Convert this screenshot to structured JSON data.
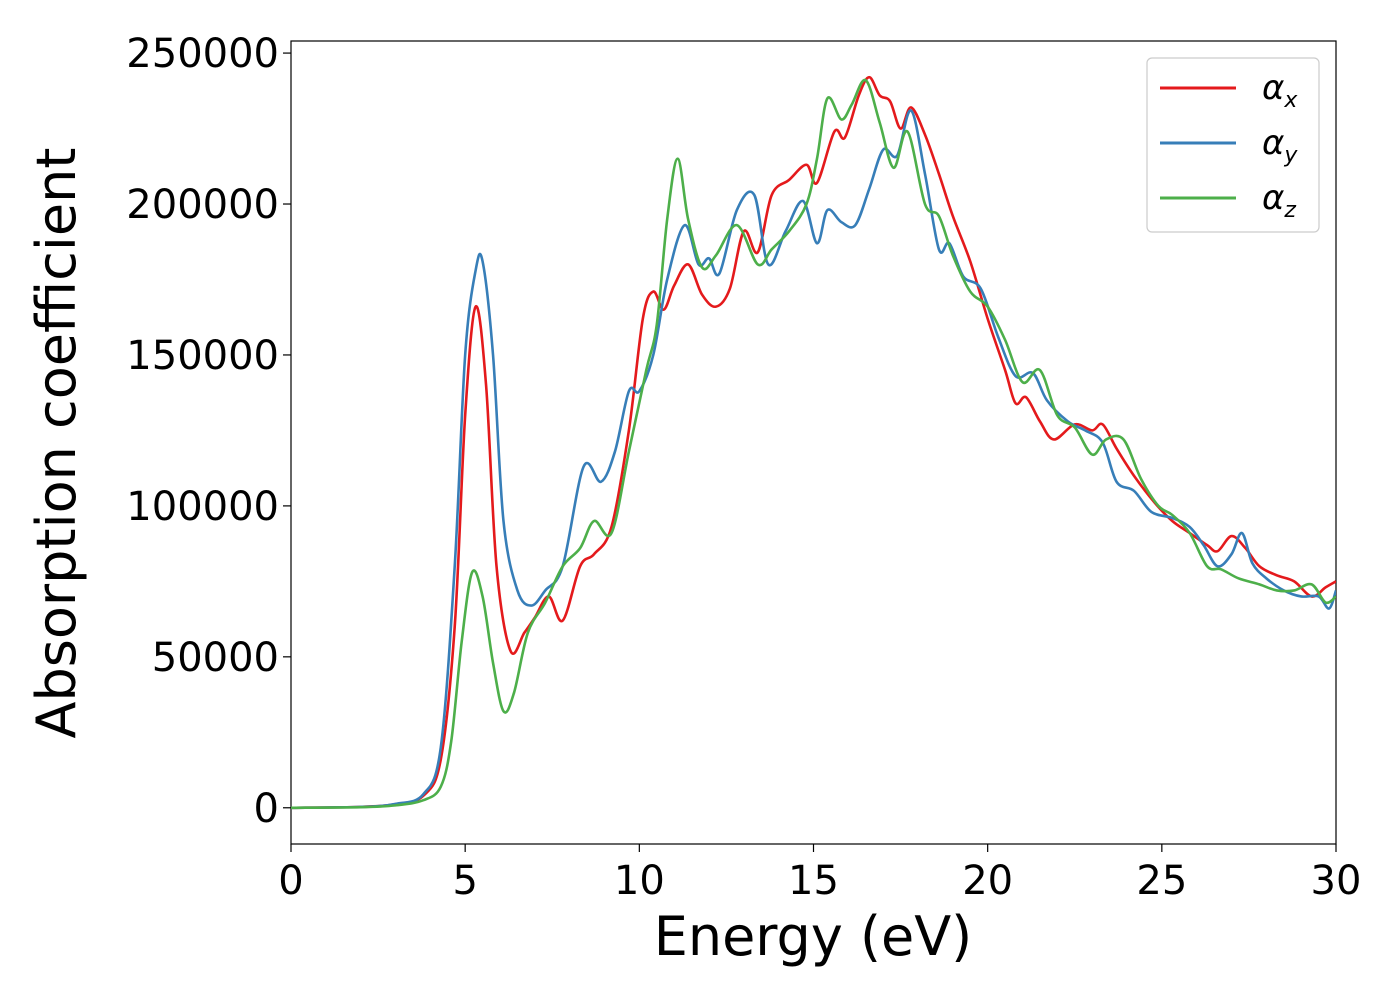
{
  "chart_data": {
    "type": "line",
    "xlabel": "Energy (eV)",
    "ylabel": "Absorption coefficient",
    "xlim": [
      0,
      30
    ],
    "ylim": [
      -12000,
      254000
    ],
    "xticks": [
      0,
      5,
      10,
      15,
      20,
      25,
      30
    ],
    "xtick_labels": [
      "0",
      "5",
      "10",
      "15",
      "20",
      "25",
      "30"
    ],
    "yticks": [
      0,
      50000,
      100000,
      150000,
      200000,
      250000
    ],
    "ytick_labels": [
      "0",
      "50000",
      "100000",
      "150000",
      "200000",
      "250000"
    ],
    "grid": false,
    "legend_position": "top-right",
    "series": [
      {
        "name": "α",
        "subscript": "x",
        "color": "#e41a1c",
        "points": [
          [
            0,
            0
          ],
          [
            2,
            300
          ],
          [
            3,
            1200
          ],
          [
            3.8,
            4000
          ],
          [
            4.3,
            16000
          ],
          [
            4.7,
            60000
          ],
          [
            5.0,
            130000
          ],
          [
            5.3,
            166000
          ],
          [
            5.6,
            140000
          ],
          [
            5.9,
            80000
          ],
          [
            6.3,
            52000
          ],
          [
            6.7,
            58000
          ],
          [
            7.0,
            63000
          ],
          [
            7.4,
            70000
          ],
          [
            7.8,
            62000
          ],
          [
            8.3,
            80000
          ],
          [
            8.7,
            84000
          ],
          [
            9.2,
            93000
          ],
          [
            9.7,
            125000
          ],
          [
            10.1,
            162000
          ],
          [
            10.4,
            171000
          ],
          [
            10.7,
            165000
          ],
          [
            11.0,
            173000
          ],
          [
            11.4,
            180000
          ],
          [
            11.8,
            170000
          ],
          [
            12.2,
            166000
          ],
          [
            12.6,
            172000
          ],
          [
            13.0,
            191000
          ],
          [
            13.4,
            184000
          ],
          [
            13.8,
            203000
          ],
          [
            14.3,
            208000
          ],
          [
            14.8,
            213000
          ],
          [
            15.1,
            207000
          ],
          [
            15.6,
            224000
          ],
          [
            15.9,
            222000
          ],
          [
            16.3,
            236000
          ],
          [
            16.6,
            242000
          ],
          [
            16.9,
            236000
          ],
          [
            17.2,
            234000
          ],
          [
            17.5,
            225000
          ],
          [
            17.8,
            232000
          ],
          [
            18.2,
            223000
          ],
          [
            18.6,
            210000
          ],
          [
            19.0,
            196000
          ],
          [
            19.5,
            181000
          ],
          [
            20.0,
            162000
          ],
          [
            20.5,
            145000
          ],
          [
            20.8,
            134000
          ],
          [
            21.1,
            136000
          ],
          [
            21.5,
            128000
          ],
          [
            21.9,
            122000
          ],
          [
            22.5,
            127000
          ],
          [
            23.0,
            125000
          ],
          [
            23.3,
            127000
          ],
          [
            23.7,
            119000
          ],
          [
            24.2,
            110000
          ],
          [
            24.8,
            101000
          ],
          [
            25.3,
            95000
          ],
          [
            25.8,
            91000
          ],
          [
            26.3,
            87000
          ],
          [
            26.6,
            85000
          ],
          [
            27.0,
            90000
          ],
          [
            27.4,
            86000
          ],
          [
            27.8,
            80000
          ],
          [
            28.3,
            77000
          ],
          [
            28.8,
            75000
          ],
          [
            29.3,
            70000
          ],
          [
            29.7,
            73000
          ],
          [
            30,
            75000
          ]
        ]
      },
      {
        "name": "α",
        "subscript": "y",
        "color": "#377eb8",
        "points": [
          [
            0,
            0
          ],
          [
            2,
            300
          ],
          [
            3,
            1300
          ],
          [
            3.8,
            4500
          ],
          [
            4.3,
            20000
          ],
          [
            4.7,
            80000
          ],
          [
            5.0,
            150000
          ],
          [
            5.3,
            178000
          ],
          [
            5.5,
            181000
          ],
          [
            5.8,
            150000
          ],
          [
            6.1,
            95000
          ],
          [
            6.5,
            72000
          ],
          [
            6.9,
            67000
          ],
          [
            7.3,
            72000
          ],
          [
            7.8,
            80000
          ],
          [
            8.4,
            113000
          ],
          [
            8.9,
            108000
          ],
          [
            9.3,
            118000
          ],
          [
            9.7,
            138000
          ],
          [
            10.0,
            138000
          ],
          [
            10.4,
            150000
          ],
          [
            10.8,
            175000
          ],
          [
            11.3,
            193000
          ],
          [
            11.7,
            180000
          ],
          [
            12.0,
            182000
          ],
          [
            12.3,
            177000
          ],
          [
            12.8,
            198000
          ],
          [
            13.3,
            203000
          ],
          [
            13.7,
            180000
          ],
          [
            14.2,
            191000
          ],
          [
            14.7,
            201000
          ],
          [
            15.1,
            187000
          ],
          [
            15.4,
            198000
          ],
          [
            15.8,
            194000
          ],
          [
            16.2,
            193000
          ],
          [
            16.6,
            205000
          ],
          [
            17.0,
            218000
          ],
          [
            17.4,
            216000
          ],
          [
            17.8,
            231000
          ],
          [
            18.2,
            210000
          ],
          [
            18.6,
            185000
          ],
          [
            18.9,
            187000
          ],
          [
            19.3,
            176000
          ],
          [
            19.8,
            172000
          ],
          [
            20.3,
            156000
          ],
          [
            20.8,
            143000
          ],
          [
            21.3,
            144000
          ],
          [
            21.7,
            135000
          ],
          [
            22.3,
            128000
          ],
          [
            22.8,
            125000
          ],
          [
            23.3,
            121000
          ],
          [
            23.7,
            108000
          ],
          [
            24.2,
            105000
          ],
          [
            24.7,
            98000
          ],
          [
            25.3,
            96000
          ],
          [
            25.8,
            93000
          ],
          [
            26.2,
            87000
          ],
          [
            26.6,
            80000
          ],
          [
            27.0,
            84000
          ],
          [
            27.3,
            91000
          ],
          [
            27.6,
            81000
          ],
          [
            28.0,
            76000
          ],
          [
            28.5,
            72000
          ],
          [
            29.0,
            70000
          ],
          [
            29.5,
            70000
          ],
          [
            29.8,
            66000
          ],
          [
            30,
            72000
          ]
        ]
      },
      {
        "name": "α",
        "subscript": "z",
        "color": "#4daf4a",
        "points": [
          [
            0,
            0
          ],
          [
            2,
            200
          ],
          [
            3,
            800
          ],
          [
            3.8,
            2500
          ],
          [
            4.3,
            7000
          ],
          [
            4.6,
            22000
          ],
          [
            4.9,
            55000
          ],
          [
            5.2,
            78000
          ],
          [
            5.5,
            70000
          ],
          [
            5.8,
            48000
          ],
          [
            6.1,
            32000
          ],
          [
            6.4,
            38000
          ],
          [
            6.8,
            58000
          ],
          [
            7.3,
            68000
          ],
          [
            7.8,
            80000
          ],
          [
            8.3,
            86000
          ],
          [
            8.7,
            95000
          ],
          [
            9.2,
            91000
          ],
          [
            9.7,
            118000
          ],
          [
            10.2,
            145000
          ],
          [
            10.5,
            160000
          ],
          [
            10.8,
            195000
          ],
          [
            11.1,
            215000
          ],
          [
            11.4,
            195000
          ],
          [
            11.8,
            179000
          ],
          [
            12.2,
            183000
          ],
          [
            12.8,
            193000
          ],
          [
            13.4,
            180000
          ],
          [
            13.8,
            185000
          ],
          [
            14.3,
            191000
          ],
          [
            14.8,
            200000
          ],
          [
            15.1,
            215000
          ],
          [
            15.4,
            235000
          ],
          [
            15.8,
            228000
          ],
          [
            16.1,
            233000
          ],
          [
            16.5,
            241000
          ],
          [
            16.9,
            227000
          ],
          [
            17.3,
            212000
          ],
          [
            17.7,
            224000
          ],
          [
            18.2,
            200000
          ],
          [
            18.6,
            196000
          ],
          [
            19.0,
            183000
          ],
          [
            19.5,
            171000
          ],
          [
            20.0,
            166000
          ],
          [
            20.5,
            155000
          ],
          [
            21.0,
            141000
          ],
          [
            21.5,
            145000
          ],
          [
            22.0,
            130000
          ],
          [
            22.5,
            126000
          ],
          [
            23.0,
            117000
          ],
          [
            23.4,
            122000
          ],
          [
            23.9,
            122000
          ],
          [
            24.4,
            109000
          ],
          [
            24.9,
            100000
          ],
          [
            25.3,
            97000
          ],
          [
            25.8,
            91000
          ],
          [
            26.3,
            80000
          ],
          [
            26.7,
            79000
          ],
          [
            27.2,
            76000
          ],
          [
            27.8,
            74000
          ],
          [
            28.3,
            72000
          ],
          [
            28.8,
            72000
          ],
          [
            29.3,
            74000
          ],
          [
            29.7,
            68000
          ],
          [
            30,
            70000
          ]
        ]
      }
    ]
  }
}
